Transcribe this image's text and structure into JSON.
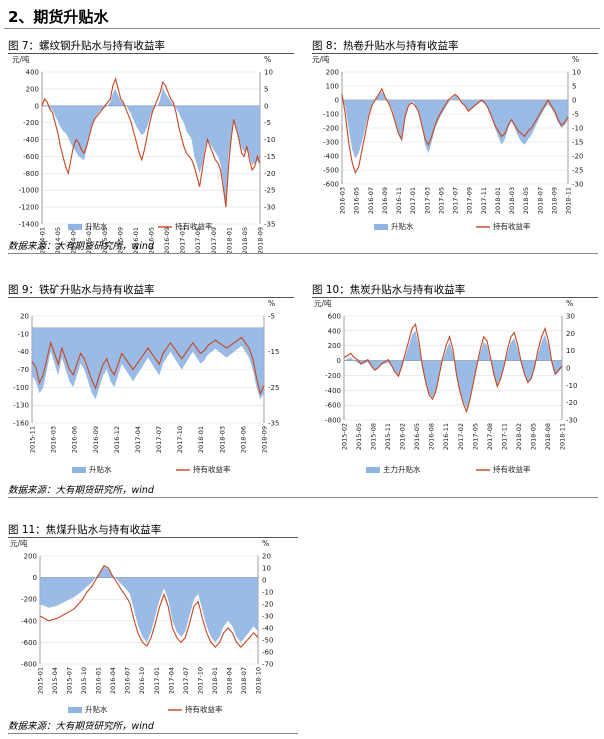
{
  "page": {
    "section_title": "2、期货升贴水"
  },
  "sources": {
    "row1": "数据来源：大有期货研究所，wind",
    "row2": "数据来源：大有期货研究所，wind",
    "row3": "数据来源：大有期货研究所，wind"
  },
  "colors": {
    "basis": "#8fb4e3",
    "returns": "#c8461f",
    "grid": "#e0e0e0"
  },
  "chart_data": [
    {
      "id": "fig7",
      "type": "area+line",
      "title": "图 7：螺纹钢升贴水与持有收益率",
      "left_unit": "元/吨",
      "right_unit": "%",
      "ylim_left": [
        -1400,
        400
      ],
      "left_ticks": [
        "400",
        "200",
        "0",
        "-200",
        "-400",
        "-600",
        "-800",
        "-1000",
        "-1200",
        "-1400"
      ],
      "ylim_right": [
        -35,
        10
      ],
      "right_ticks": [
        "10",
        "5",
        "0",
        "-5",
        "-10",
        "-15",
        "-20",
        "-25",
        "-30",
        "-35"
      ],
      "x_ticks": [
        "2014-01",
        "2014-05",
        "2014-09",
        "2015-01",
        "2015-05",
        "2015-09",
        "2016-01",
        "2016-05",
        "2016-09",
        "2017-01",
        "2017-05",
        "2017-09",
        "2018-01",
        "2018-05",
        "2018-09"
      ],
      "legend": [
        "升贴水",
        "持有收益率"
      ],
      "basis": [
        0,
        -10,
        -5,
        -30,
        -50,
        -120,
        -180,
        -250,
        -300,
        -320,
        -380,
        -450,
        -500,
        -550,
        -600,
        -620,
        -650,
        -500,
        -350,
        -250,
        -150,
        -100,
        -60,
        -40,
        -20,
        0,
        50,
        150,
        200,
        120,
        60,
        30,
        0,
        -50,
        -100,
        -180,
        -250,
        -300,
        -350,
        -320,
        -250,
        -150,
        -60,
        -10,
        0,
        80,
        220,
        150,
        100,
        50,
        20,
        -30,
        -80,
        -150,
        -200,
        -300,
        -350,
        -400,
        -600,
        -700,
        -800,
        -700,
        -500,
        -400,
        -450,
        -500,
        -550,
        -600,
        -700,
        -900,
        -1200,
        -600,
        -400,
        -200,
        -300,
        -400,
        -500,
        -550,
        -500,
        -600,
        -700,
        -680,
        -650,
        -700
      ],
      "returns": [
        0,
        2,
        1,
        -1,
        -2,
        -5,
        -8,
        -12,
        -15,
        -18,
        -20,
        -16,
        -12,
        -10,
        -11,
        -13,
        -14,
        -12,
        -9,
        -6,
        -4,
        -3,
        -2,
        -1,
        0,
        1,
        2,
        6,
        8,
        5,
        2,
        1,
        -1,
        -3,
        -5,
        -8,
        -11,
        -14,
        -16,
        -13,
        -9,
        -5,
        -2,
        0,
        2,
        4,
        7,
        6,
        4,
        2,
        1,
        -2,
        -6,
        -9,
        -12,
        -14,
        -15,
        -16,
        -18,
        -21,
        -24,
        -19,
        -14,
        -10,
        -12,
        -14,
        -16,
        -17,
        -19,
        -24,
        -30,
        -18,
        -10,
        -4,
        -7,
        -10,
        -14,
        -15,
        -12,
        -16,
        -19,
        -18,
        -15,
        -17
      ]
    },
    {
      "id": "fig8",
      "type": "area+line",
      "title": "图 8：热卷升贴水与持有收益率",
      "left_unit": "元/吨",
      "right_unit": "%",
      "ylim_left": [
        -600,
        200
      ],
      "left_ticks": [
        "200",
        "100",
        "0",
        "-100",
        "-200",
        "-300",
        "-400",
        "-500",
        "-600"
      ],
      "ylim_right": [
        -30,
        10
      ],
      "right_ticks": [
        "10",
        "5",
        "0",
        "-5",
        "-10",
        "-15",
        "-20",
        "-25",
        "-30"
      ],
      "x_ticks": [
        "2016-03",
        "2016-05",
        "2016-07",
        "2016-09",
        "2016-11",
        "2017-01",
        "2017-03",
        "2017-05",
        "2017-07",
        "2017-09",
        "2017-11",
        "2018-01",
        "2018-03",
        "2018-05",
        "2018-07",
        "2018-09",
        "2018-11"
      ],
      "legend": [
        "升贴水",
        "持有收益率"
      ],
      "basis": [
        0,
        -50,
        -200,
        -350,
        -420,
        -380,
        -300,
        -200,
        -100,
        -30,
        10,
        40,
        60,
        20,
        -20,
        -60,
        -150,
        -250,
        -300,
        -120,
        -40,
        -10,
        -30,
        -80,
        -180,
        -320,
        -380,
        -300,
        -200,
        -150,
        -100,
        -60,
        -20,
        10,
        30,
        20,
        -20,
        -50,
        -80,
        -60,
        -40,
        -20,
        -10,
        -30,
        -60,
        -120,
        -200,
        -260,
        -320,
        -280,
        -200,
        -150,
        -200,
        -260,
        -300,
        -320,
        -280,
        -250,
        -200,
        -150,
        -100,
        -60,
        -30,
        -60,
        -100,
        -160,
        -200,
        -180,
        -140
      ],
      "returns": [
        2,
        -5,
        -15,
        -22,
        -26,
        -24,
        -18,
        -12,
        -6,
        -2,
        0,
        2,
        4,
        1,
        -1,
        -4,
        -8,
        -12,
        -14,
        -6,
        -2,
        -1,
        -2,
        -4,
        -9,
        -14,
        -16,
        -13,
        -9,
        -6,
        -4,
        -2,
        0,
        1,
        2,
        1,
        -1,
        -2,
        -4,
        -3,
        -2,
        -1,
        0,
        -1,
        -3,
        -6,
        -9,
        -11,
        -13,
        -12,
        -9,
        -7,
        -9,
        -11,
        -12,
        -13,
        -11,
        -10,
        -8,
        -6,
        -4,
        -2,
        0,
        -2,
        -4,
        -7,
        -9,
        -8,
        -6
      ]
    },
    {
      "id": "fig9",
      "type": "area+line",
      "title": "图 9：铁矿升贴水与持有收益率",
      "left_unit": "",
      "right_unit": "%",
      "ylim_left": [
        -160,
        20
      ],
      "left_ticks": [
        "20",
        "-10",
        "-40",
        "-70",
        "-100",
        "-130",
        "-160"
      ],
      "ylim_right": [
        -35,
        5
      ],
      "right_ticks": [
        "-5",
        "-15",
        "-25",
        "-35"
      ],
      "x_ticks": [
        "2015-11",
        "2016-03",
        "2016-06",
        "2016-09",
        "2016-12",
        "2017-04",
        "2017-07",
        "2017-10",
        "2018-01",
        "2018-03",
        "2018-06",
        "2018-09"
      ],
      "legend": [
        "升贴水",
        "持有收益率"
      ],
      "basis": [
        -80,
        -90,
        -110,
        -100,
        -70,
        -40,
        -60,
        -80,
        -50,
        -70,
        -90,
        -100,
        -80,
        -60,
        -70,
        -90,
        -110,
        -120,
        -100,
        -80,
        -70,
        -90,
        -100,
        -80,
        -60,
        -70,
        -80,
        -90,
        -80,
        -70,
        -60,
        -50,
        -60,
        -70,
        -80,
        -60,
        -50,
        -40,
        -50,
        -60,
        -70,
        -60,
        -50,
        -40,
        -50,
        -60,
        -55,
        -45,
        -40,
        -35,
        -40,
        -45,
        -50,
        -45,
        -40,
        -35,
        -30,
        -40,
        -50,
        -70,
        -100,
        -120,
        -110
      ],
      "returns": [
        -12,
        -14,
        -20,
        -17,
        -11,
        -5,
        -9,
        -13,
        -7,
        -11,
        -15,
        -17,
        -13,
        -9,
        -11,
        -15,
        -19,
        -22,
        -17,
        -13,
        -11,
        -15,
        -17,
        -13,
        -9,
        -11,
        -13,
        -15,
        -13,
        -11,
        -9,
        -7,
        -9,
        -11,
        -13,
        -9,
        -7,
        -5,
        -7,
        -9,
        -11,
        -9,
        -7,
        -5,
        -7,
        -9,
        -8,
        -6,
        -5,
        -4,
        -5,
        -6,
        -7,
        -6,
        -5,
        -4,
        -3,
        -5,
        -7,
        -11,
        -18,
        -24,
        -21
      ]
    },
    {
      "id": "fig10",
      "type": "area+line",
      "title": "图 10：焦炭升贴水与持有收益率",
      "left_unit": "元/吨",
      "right_unit": "%",
      "ylim_left": [
        -800,
        600
      ],
      "left_ticks": [
        "600",
        "400",
        "200",
        "0",
        "-200",
        "-400",
        "-600",
        "-800"
      ],
      "ylim_right": [
        -30,
        20
      ],
      "right_ticks": [
        "30",
        "20",
        "10",
        "0",
        "-10",
        "-20",
        "-30"
      ],
      "x_ticks": [
        "2015-02",
        "2015-05",
        "2015-08",
        "2015-11",
        "2016-02",
        "2016-05",
        "2016-08",
        "2016-11",
        "2017-02",
        "2017-05",
        "2017-08",
        "2017-11",
        "2018-02",
        "2018-05",
        "2018-08",
        "2018-11"
      ],
      "legend": [
        "主力升贴水",
        "持有收益率"
      ],
      "basis": [
        0,
        20,
        40,
        0,
        -30,
        -60,
        -40,
        -20,
        -80,
        -120,
        -100,
        -60,
        -40,
        -30,
        -80,
        -150,
        -200,
        -100,
        50,
        200,
        350,
        400,
        200,
        -100,
        -300,
        -450,
        -500,
        -400,
        -200,
        0,
        150,
        250,
        100,
        -200,
        -400,
        -550,
        -650,
        -500,
        -300,
        -100,
        100,
        250,
        200,
        0,
        -200,
        -350,
        -250,
        -100,
        100,
        250,
        300,
        150,
        -50,
        -200,
        -300,
        -250,
        -100,
        100,
        250,
        350,
        200,
        -50,
        -200,
        -150,
        -100
      ],
      "returns": [
        0,
        1,
        2,
        0,
        -1,
        -3,
        -2,
        -1,
        -4,
        -6,
        -5,
        -3,
        -2,
        -1,
        -4,
        -7,
        -9,
        -4,
        2,
        8,
        14,
        16,
        8,
        -4,
        -12,
        -18,
        -20,
        -16,
        -8,
        0,
        6,
        10,
        4,
        -8,
        -16,
        -22,
        -26,
        -20,
        -12,
        -4,
        4,
        10,
        8,
        0,
        -8,
        -14,
        -10,
        -4,
        4,
        10,
        12,
        6,
        -2,
        -8,
        -12,
        -10,
        -4,
        4,
        10,
        14,
        8,
        -2,
        -8,
        -6,
        -4
      ]
    },
    {
      "id": "fig11",
      "type": "area+line",
      "title": "图 11：焦煤升贴水与持有收益率",
      "left_unit": "元/吨",
      "right_unit": "%",
      "ylim_left": [
        -800,
        200
      ],
      "left_ticks": [
        "200",
        "0",
        "-200",
        "-400",
        "-600",
        "-800"
      ],
      "ylim_right": [
        -70,
        20
      ],
      "right_ticks": [
        "20",
        "10",
        "0",
        "-10",
        "-20",
        "-30",
        "-40",
        "-50",
        "-60",
        "-70"
      ],
      "x_ticks": [
        "2015-01",
        "2015-04",
        "2015-07",
        "2015-10",
        "2016-01",
        "2016-04",
        "2016-07",
        "2016-10",
        "2017-01",
        "2017-04",
        "2017-07",
        "2017-10",
        "2018-01",
        "2018-04",
        "2018-07",
        "2018-10"
      ],
      "legend": [
        "升贴水",
        "持有收益率"
      ],
      "basis": [
        -250,
        -260,
        -280,
        -270,
        -260,
        -240,
        -220,
        -200,
        -180,
        -150,
        -120,
        -80,
        -50,
        0,
        50,
        100,
        80,
        20,
        -20,
        -60,
        -100,
        -150,
        -300,
        -450,
        -550,
        -600,
        -500,
        -350,
        -200,
        -100,
        -200,
        -400,
        -500,
        -550,
        -500,
        -350,
        -200,
        -150,
        -300,
        -450,
        -550,
        -600,
        -550,
        -450,
        -400,
        -450,
        -550,
        -600,
        -550,
        -500,
        -450,
        -500
      ],
      "returns": [
        -30,
        -32,
        -34,
        -33,
        -32,
        -30,
        -28,
        -26,
        -24,
        -20,
        -16,
        -10,
        -6,
        0,
        6,
        12,
        10,
        3,
        -2,
        -8,
        -13,
        -19,
        -33,
        -45,
        -52,
        -55,
        -48,
        -36,
        -22,
        -12,
        -22,
        -40,
        -48,
        -52,
        -48,
        -36,
        -22,
        -18,
        -32,
        -44,
        -52,
        -56,
        -52,
        -44,
        -40,
        -44,
        -52,
        -56,
        -52,
        -48,
        -44,
        -48
      ]
    }
  ]
}
